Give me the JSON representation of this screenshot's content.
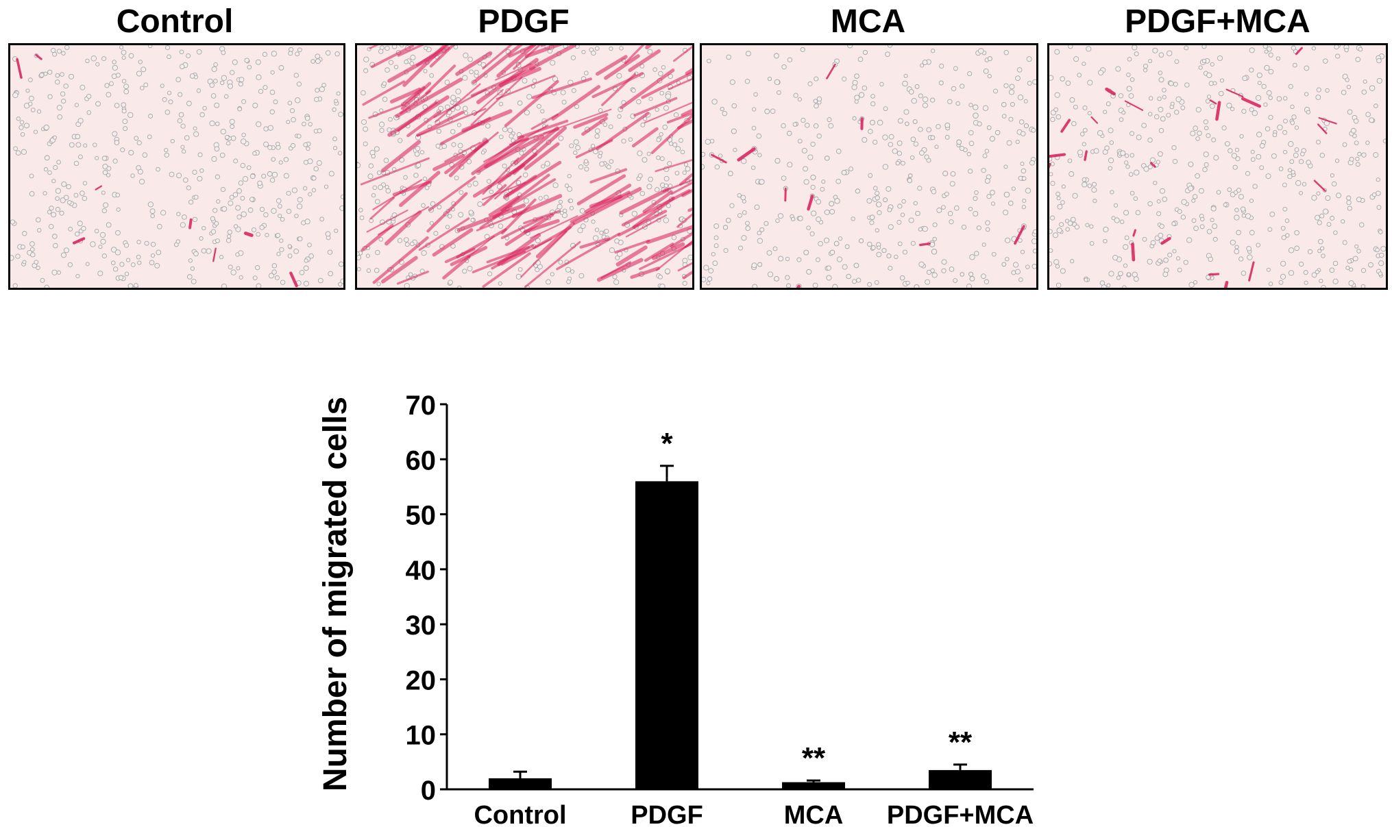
{
  "panels": [
    {
      "label": "Control"
    },
    {
      "label": "PDGF"
    },
    {
      "label": "MCA"
    },
    {
      "label": "PDGF+MCA"
    }
  ],
  "colors": {
    "background_stain": "#f9e9e9",
    "cell_stain": "#d81b5a",
    "bar": "#000000"
  },
  "chart_data": {
    "type": "bar",
    "categories": [
      "Control",
      "PDGF",
      "MCA",
      "PDGF+MCA"
    ],
    "values": [
      2,
      56,
      1.3,
      3.5
    ],
    "errors": [
      1.2,
      2.8,
      0.3,
      1.0
    ],
    "annotations": [
      "",
      "*",
      "**",
      "**"
    ],
    "ylabel": "Number of migrated cells",
    "xlabel": "",
    "ylim": [
      0,
      70
    ],
    "yticks": [
      0,
      10,
      20,
      30,
      40,
      50,
      60,
      70
    ],
    "grid": false,
    "legend": "none"
  }
}
